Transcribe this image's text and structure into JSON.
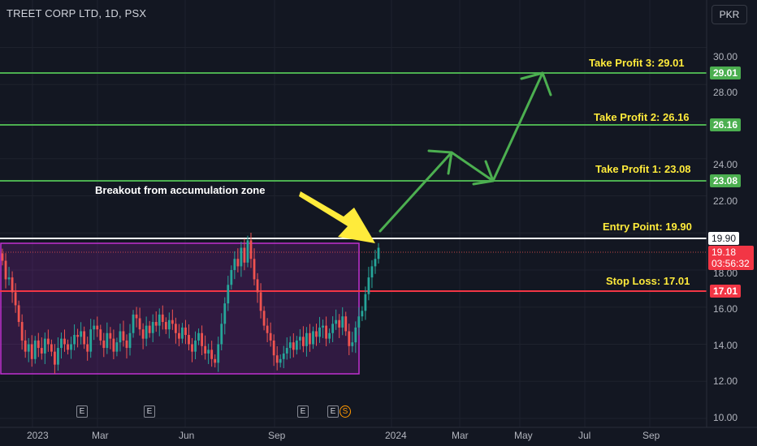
{
  "header": {
    "symbol_title": "TREET CORP LTD, 1D, PSX",
    "currency": "PKR"
  },
  "colors": {
    "background": "#131722",
    "up": "#26a69a",
    "down": "#ef5350",
    "target": "#4caf50",
    "entry": "#ffffff",
    "stop": "#f23645",
    "zone": "#9c27b0",
    "annotation": "#ffeb3b"
  },
  "y_axis": {
    "ticks": [
      "30.00",
      "28.00",
      "24.00",
      "22.00",
      "18.00",
      "16.00",
      "14.00",
      "12.00",
      "10.00"
    ]
  },
  "x_axis": {
    "ticks": [
      "2023",
      "Mar",
      "Jun",
      "Sep",
      "2024",
      "Mar",
      "May",
      "Jul",
      "Sep"
    ]
  },
  "levels": {
    "tp3": {
      "price": "29.01",
      "label": "Take Profit 3: 29.01"
    },
    "tp2": {
      "price": "26.16",
      "label": "Take Profit 2: 26.16"
    },
    "tp1": {
      "price": "23.08",
      "label": "Take Profit 1: 23.08"
    },
    "entry": {
      "price": "19.90",
      "label": "Entry Point: 19.90"
    },
    "stop": {
      "price": "17.01",
      "label": "Stop Loss: 17.01"
    }
  },
  "current": {
    "price": "19.18",
    "countdown": "03:56:32"
  },
  "annotation": {
    "breakout": "Breakout from accumulation zone"
  },
  "events": {
    "earnings_label": "E",
    "split_label": "S"
  },
  "chart_data": {
    "type": "candlestick",
    "y_range": [
      10,
      30.5
    ],
    "close_series": [
      18.5,
      17.5,
      17.6,
      16.8,
      16.1,
      15.2,
      14.2,
      13.6,
      14.0,
      13.2,
      14.2,
      13.8,
      13.5,
      14.3,
      14.0,
      13.6,
      12.9,
      13.8,
      14.3,
      14.0,
      13.7,
      14.0,
      14.5,
      14.4,
      14.7,
      14.0,
      13.6,
      14.8,
      15.0,
      14.8,
      14.2,
      13.8,
      14.6,
      14.3,
      13.6,
      14.1,
      14.7,
      14.2,
      13.8,
      14.6,
      15.6,
      15.4,
      14.8,
      14.3,
      15.0,
      14.6,
      15.2,
      15.0,
      15.6,
      15.2,
      14.8,
      15.3,
      15.1,
      14.6,
      14.3,
      14.9,
      14.5,
      14.0,
      13.6,
      14.2,
      14.6,
      13.9,
      13.5,
      13.7,
      13.2,
      13.0,
      14.0,
      15.1,
      16.2,
      17.2,
      18.0,
      18.6,
      18.2,
      19.2,
      18.4,
      19.6,
      18.6,
      17.5,
      16.8,
      15.8,
      15.0,
      14.6,
      14.2,
      13.4,
      13.0,
      13.2,
      13.5,
      13.8,
      14.1,
      13.7,
      14.2,
      14.4,
      13.9,
      14.6,
      14.0,
      14.7,
      14.4,
      14.9,
      15.0,
      14.3,
      14.6,
      15.1,
      15.3,
      14.9,
      15.5,
      14.7,
      13.9,
      14.1,
      14.9,
      15.5,
      15.8,
      16.7,
      17.6,
      18.2,
      18.6,
      19.2
    ],
    "annotation_texts": [
      "Breakout from accumulation zone",
      "Take Profit 3: 29.01",
      "Take Profit 2: 26.16",
      "Take Profit 1: 23.08",
      "Entry Point: 19.90",
      "Stop Loss: 17.01"
    ]
  }
}
